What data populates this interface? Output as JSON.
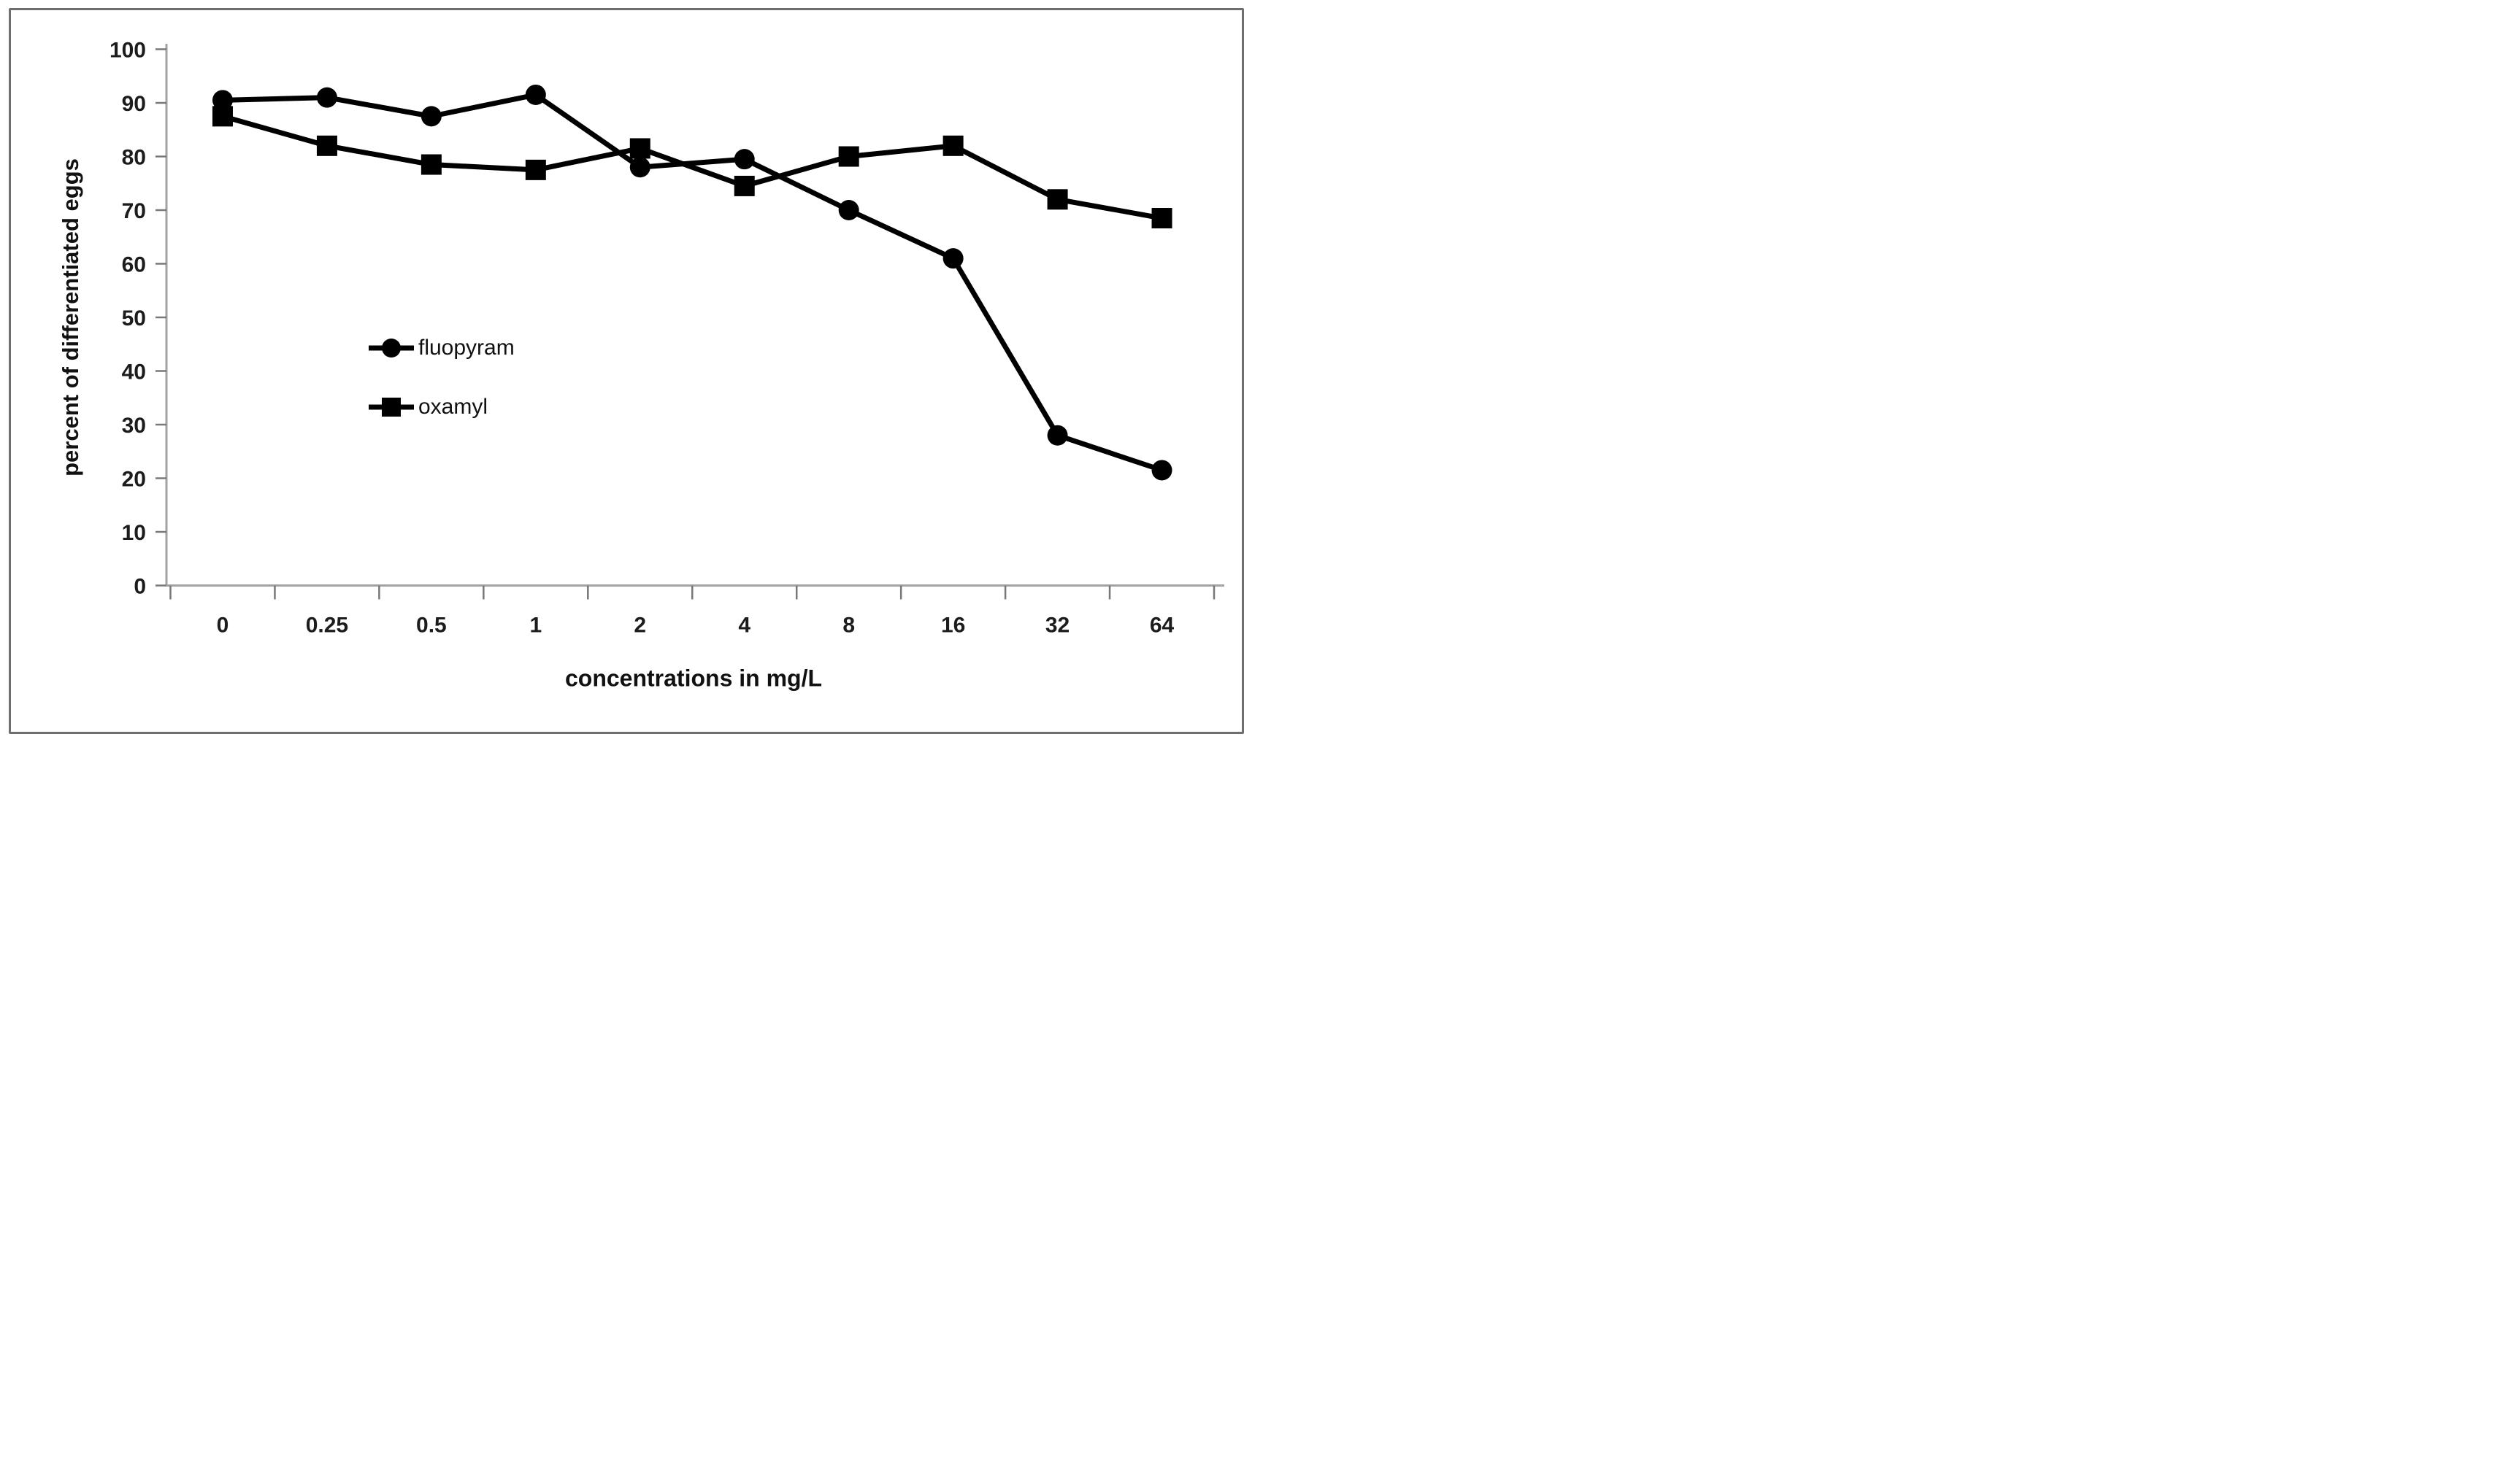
{
  "chart_data": {
    "type": "line",
    "title": "",
    "categories": [
      "0",
      "0.25",
      "0.5",
      "1",
      "2",
      "4",
      "8",
      "16",
      "32",
      "64"
    ],
    "series": [
      {
        "name": "fluopyram",
        "marker": "circle",
        "color": "#000000",
        "values": [
          90.5,
          91,
          87.5,
          91.5,
          78,
          79.5,
          70,
          61,
          28,
          21.5
        ]
      },
      {
        "name": "oxamyl",
        "marker": "square",
        "color": "#000000",
        "values": [
          87.5,
          82,
          78.5,
          77.5,
          81.5,
          74.5,
          80,
          82,
          72,
          68.5
        ]
      }
    ],
    "xlabel": "concentrations in mg/L",
    "ylabel": "percent of differentiated eggs",
    "ylim": [
      0,
      100
    ],
    "ytick_step": 10,
    "ytick_labels": [
      "0",
      "10",
      "20",
      "30",
      "40",
      "50",
      "60",
      "70",
      "80",
      "90",
      "100"
    ],
    "grid": false,
    "legend_position": "inside-left-center",
    "axis_color": "#a3a3a3",
    "tick_color": "#787878",
    "text_color": "#1c1c1c"
  }
}
